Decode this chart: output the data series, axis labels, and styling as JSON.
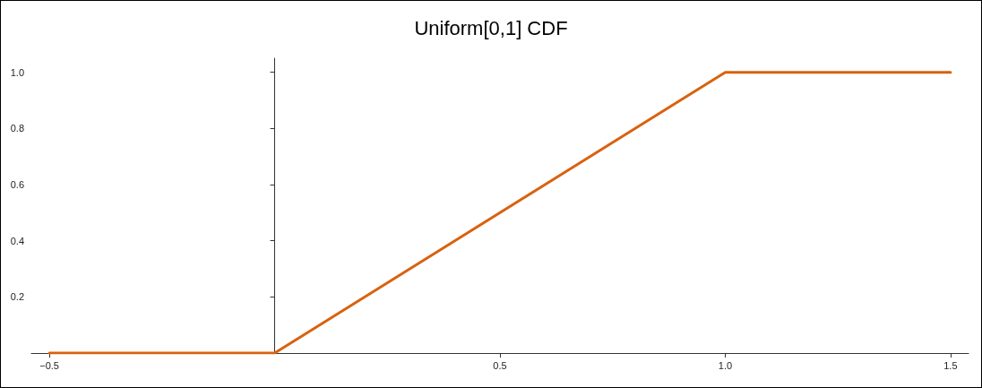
{
  "chart_data": {
    "type": "line",
    "title": "Uniform[0,1] CDF",
    "x": [
      -0.5,
      0,
      1,
      1.5
    ],
    "series": [
      {
        "color": "#d9620f",
        "values": [
          0,
          0,
          1,
          1
        ]
      }
    ],
    "xlim": [
      -0.54,
      1.54
    ],
    "ylim": [
      0,
      1.05
    ],
    "xticks": [
      {
        "value": -0.5,
        "label": "−0.5"
      },
      0.5,
      {
        "value": 1,
        "label": "1.0"
      },
      1.5
    ],
    "yticks": [
      0.2,
      0.4,
      0.6,
      0.8,
      {
        "value": 1,
        "label": "1.0"
      }
    ],
    "grid": false,
    "marker": "none",
    "line_style": "solid"
  }
}
